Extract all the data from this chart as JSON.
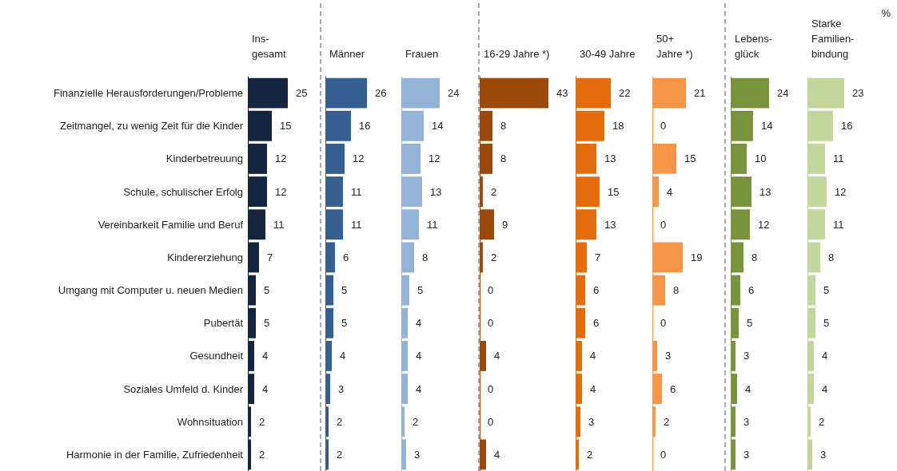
{
  "chart_data": [
    {
      "type": "bar",
      "orientation": "horizontal",
      "title": "Ins-\ngesamt",
      "categories": [
        "Finanzielle Herausforderungen/Probleme",
        "Zeitmangel, zu wenig Zeit für die Kinder",
        "Kinderbetreuung",
        "Schule, schulischer Erfolg",
        "Vereinbarkeit Familie und Beruf",
        "Kindererziehung",
        "Umgang mit Computer u. neuen Medien",
        "Pubertät",
        "Gesundheit",
        "Soziales Umfeld d. Kinder",
        "Wohnsituation",
        "Harmonie in der Familie, Zufriedenheit"
      ],
      "values": [
        25,
        15,
        12,
        12,
        11,
        7,
        5,
        5,
        4,
        4,
        2,
        2
      ],
      "color": "#14253f",
      "data_labels": true,
      "tick_labels": "y"
    },
    {
      "type": "bar",
      "orientation": "horizontal",
      "title": "Männer",
      "categories": [
        null,
        null,
        null,
        null,
        null,
        null,
        null,
        null,
        null,
        null,
        null,
        null
      ],
      "values": [
        26,
        16,
        12,
        11,
        11,
        6,
        5,
        5,
        4,
        3,
        2,
        2
      ],
      "color": "#355f91",
      "data_labels": true,
      "tick_labels": false
    },
    {
      "type": "bar",
      "orientation": "horizontal",
      "title": "Frauen",
      "categories": [
        null,
        null,
        null,
        null,
        null,
        null,
        null,
        null,
        null,
        null,
        null,
        null
      ],
      "values": [
        24,
        14,
        12,
        13,
        11,
        8,
        5,
        4,
        4,
        4,
        2,
        3
      ],
      "color": "#93b3d7",
      "data_labels": true,
      "tick_labels": false
    },
    {
      "type": "bar",
      "orientation": "horizontal",
      "title": "16-29 Jahre *)",
      "categories": [
        null,
        null,
        null,
        null,
        null,
        null,
        null,
        null,
        null,
        null,
        null,
        null
      ],
      "values": [
        43,
        8,
        8,
        2,
        9,
        2,
        0,
        0,
        4,
        0,
        0,
        4
      ],
      "color": "#9c4a09",
      "data_labels": true,
      "tick_labels": false
    },
    {
      "type": "bar",
      "orientation": "horizontal",
      "title": "30-49 Jahre",
      "categories": [
        null,
        null,
        null,
        null,
        null,
        null,
        null,
        null,
        null,
        null,
        null,
        null
      ],
      "values": [
        22,
        18,
        13,
        15,
        13,
        7,
        6,
        6,
        4,
        4,
        3,
        2
      ],
      "color": "#e46c0a",
      "data_labels": true,
      "tick_labels": false
    },
    {
      "type": "bar",
      "orientation": "horizontal",
      "title": "50+\nJahre *)",
      "categories": [
        null,
        null,
        null,
        null,
        null,
        null,
        null,
        null,
        null,
        null,
        null,
        null
      ],
      "values": [
        21,
        0,
        15,
        4,
        0,
        19,
        8,
        0,
        3,
        6,
        2,
        0
      ],
      "color": "#f79646",
      "data_labels": true,
      "tick_labels": false
    },
    {
      "type": "bar",
      "orientation": "horizontal",
      "title": "Lebens-\nglück",
      "categories": [
        null,
        null,
        null,
        null,
        null,
        null,
        null,
        null,
        null,
        null,
        null,
        null
      ],
      "values": [
        24,
        14,
        10,
        13,
        12,
        8,
        6,
        5,
        3,
        4,
        3,
        3
      ],
      "color": "#77933c",
      "data_labels": true,
      "tick_labels": false
    },
    {
      "type": "bar",
      "orientation": "horizontal",
      "title": "Starke\nFamilien-\nbindung",
      "categories": [
        null,
        null,
        null,
        null,
        null,
        null,
        null,
        null,
        null,
        null,
        null,
        null
      ],
      "values": [
        23,
        16,
        11,
        12,
        11,
        8,
        5,
        5,
        4,
        4,
        2,
        3
      ],
      "color": "#c3d69b",
      "data_labels": true,
      "tick_labels": false,
      "annotations": [
        "%"
      ]
    }
  ]
}
